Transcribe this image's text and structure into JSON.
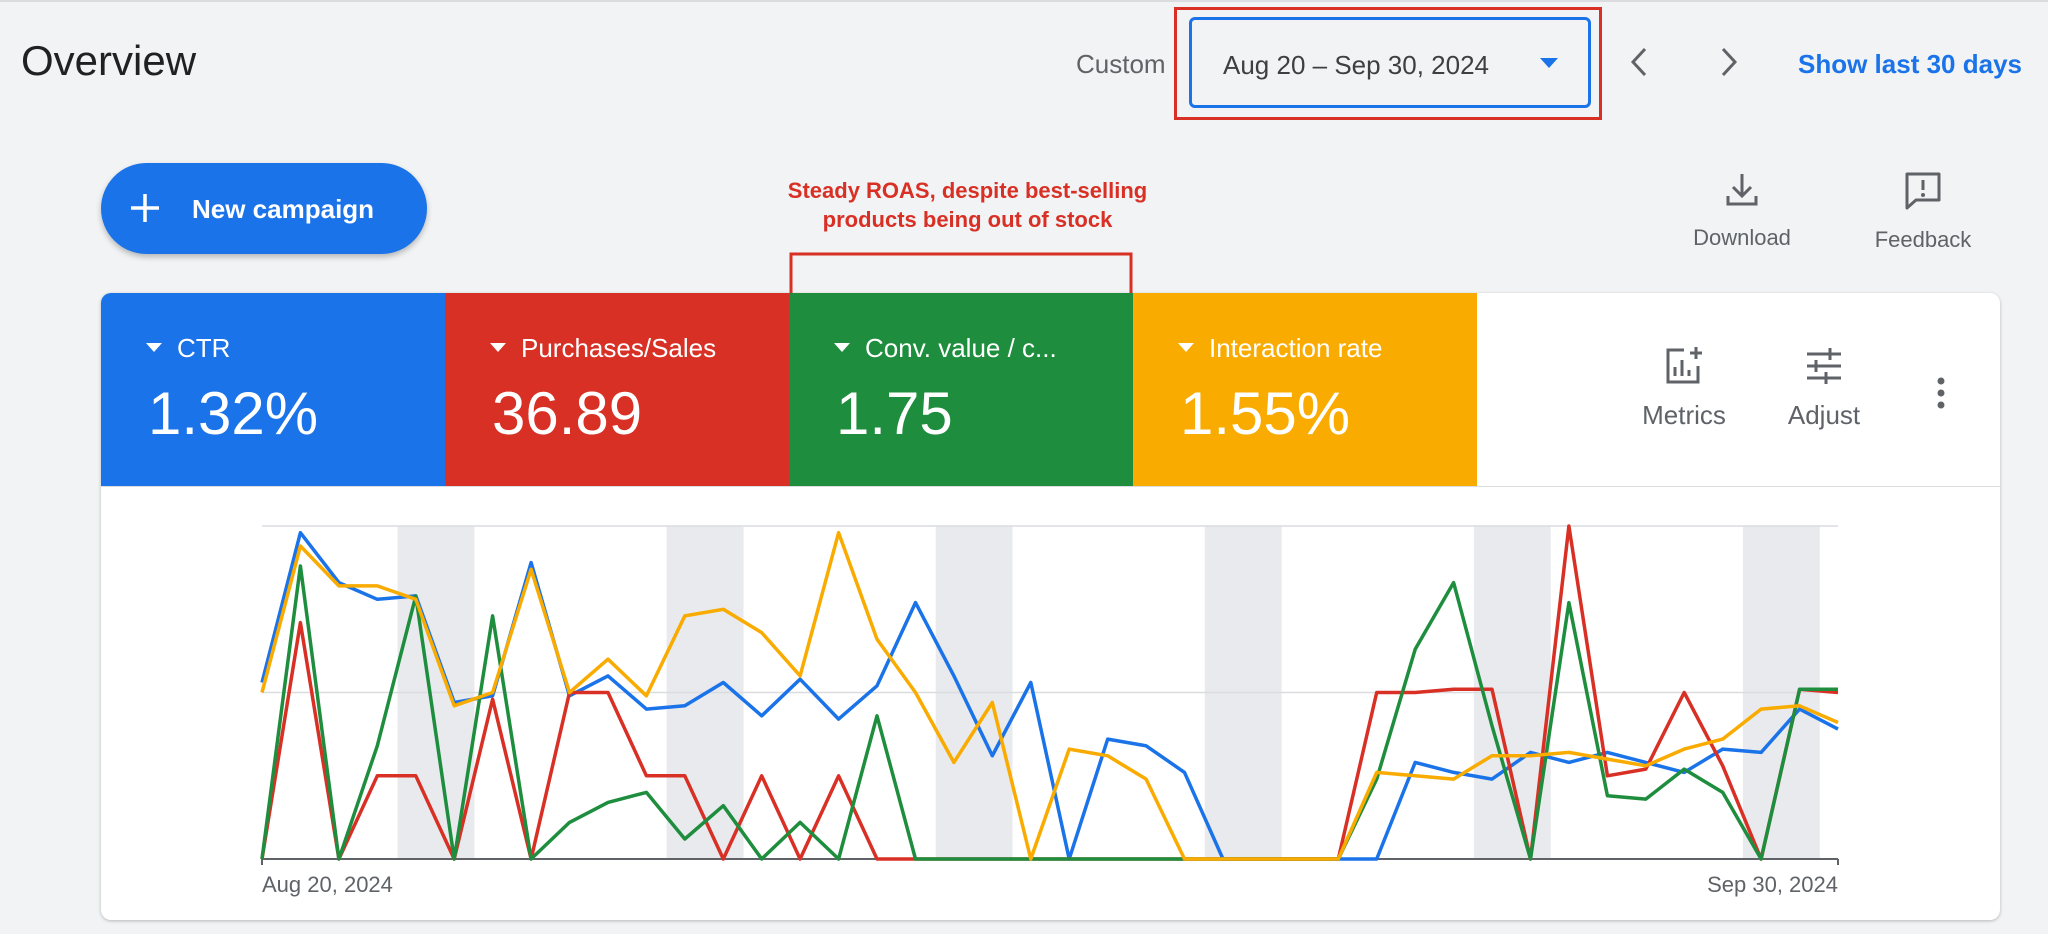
{
  "header": {
    "title": "Overview",
    "date_mode_label": "Custom",
    "date_range": "Aug 20 – Sep 30, 2024",
    "show_last_label": "Show last 30 days"
  },
  "actions": {
    "new_campaign_label": "New campaign",
    "download_label": "Download",
    "feedback_label": "Feedback"
  },
  "annotation": {
    "line1": "Steady ROAS, despite best-selling",
    "line2": "products being out of stock",
    "color": "#d93025"
  },
  "scorecards": [
    {
      "label": "CTR",
      "value": "1.32%",
      "color": "#1a73e8"
    },
    {
      "label": "Purchases/Sales",
      "value": "36.89",
      "color": "#d93025"
    },
    {
      "label": "Conv. value / c...",
      "value": "1.75",
      "color": "#1e8e3e"
    },
    {
      "label": "Interaction rate",
      "value": "1.55%",
      "color": "#f9ab00"
    }
  ],
  "panel_tools": {
    "metrics_label": "Metrics",
    "adjust_label": "Adjust"
  },
  "chart_data": {
    "type": "line",
    "x_start_label": "Aug 20, 2024",
    "x_end_label": "Sep 30, 2024",
    "x": [
      "Aug 20",
      "Aug 21",
      "Aug 22",
      "Aug 23",
      "Aug 24",
      "Aug 25",
      "Aug 26",
      "Aug 27",
      "Aug 28",
      "Aug 29",
      "Aug 30",
      "Aug 31",
      "Sep 1",
      "Sep 2",
      "Sep 3",
      "Sep 4",
      "Sep 5",
      "Sep 6",
      "Sep 7",
      "Sep 8",
      "Sep 9",
      "Sep 10",
      "Sep 11",
      "Sep 12",
      "Sep 13",
      "Sep 14",
      "Sep 15",
      "Sep 16",
      "Sep 17",
      "Sep 18",
      "Sep 19",
      "Sep 20",
      "Sep 21",
      "Sep 22",
      "Sep 23",
      "Sep 24",
      "Sep 25",
      "Sep 26",
      "Sep 27",
      "Sep 28",
      "Sep 29",
      "Sep 30"
    ],
    "weekend_bands": [
      [
        "Aug 24",
        "Aug 25"
      ],
      [
        "Aug 31",
        "Sep 1"
      ],
      [
        "Sep 7",
        "Sep 8"
      ],
      [
        "Sep 14",
        "Sep 15"
      ],
      [
        "Sep 21",
        "Sep 22"
      ],
      [
        "Sep 28",
        "Sep 29"
      ]
    ],
    "y_scale": "normalized, 0 to 1, no axis labels shown",
    "ylim": [
      0,
      1
    ],
    "grid": "horizontal lines at 0.5 and 1.0",
    "series": [
      {
        "metric": "CTR",
        "color": "#1a73e8",
        "values": [
          0.53,
          0.98,
          0.83,
          0.78,
          0.79,
          0.47,
          0.49,
          0.89,
          0.49,
          0.55,
          0.45,
          0.46,
          0.53,
          0.43,
          0.54,
          0.42,
          0.52,
          0.77,
          0.55,
          0.31,
          0.53,
          0.0,
          0.36,
          0.34,
          0.26,
          0.0,
          0.0,
          0.0,
          0.0,
          0.0,
          0.29,
          0.26,
          0.24,
          0.32,
          0.29,
          0.32,
          0.29,
          0.26,
          0.33,
          0.32,
          0.45,
          0.39
        ]
      },
      {
        "metric": "Purchases/Sales",
        "color": "#d93025",
        "values": [
          0.0,
          0.71,
          0.0,
          0.25,
          0.25,
          0.0,
          0.48,
          0.0,
          0.5,
          0.5,
          0.25,
          0.25,
          0.0,
          0.25,
          0.0,
          0.25,
          0.0,
          0.0,
          0.0,
          0.0,
          0.0,
          0.0,
          0.0,
          0.0,
          0.0,
          0.0,
          0.0,
          0.0,
          0.0,
          0.5,
          0.5,
          0.51,
          0.51,
          0.0,
          1.0,
          0.25,
          0.27,
          0.5,
          0.28,
          0.0,
          0.51,
          0.5
        ]
      },
      {
        "metric": "Conv. value / cost",
        "color": "#1e8e3e",
        "values": [
          0.0,
          0.88,
          0.0,
          0.34,
          0.79,
          0.0,
          0.73,
          0.0,
          0.11,
          0.17,
          0.2,
          0.06,
          0.16,
          0.0,
          0.11,
          0.0,
          0.43,
          0.0,
          0.0,
          0.0,
          0.0,
          0.0,
          0.0,
          0.0,
          0.0,
          0.0,
          0.0,
          0.0,
          0.0,
          0.24,
          0.63,
          0.83,
          0.4,
          0.0,
          0.77,
          0.19,
          0.18,
          0.27,
          0.2,
          0.0,
          0.51,
          0.51
        ]
      },
      {
        "metric": "Interaction rate",
        "color": "#f9ab00",
        "values": [
          0.5,
          0.94,
          0.82,
          0.82,
          0.78,
          0.46,
          0.5,
          0.87,
          0.5,
          0.6,
          0.49,
          0.73,
          0.75,
          0.68,
          0.55,
          0.98,
          0.66,
          0.5,
          0.29,
          0.47,
          0.0,
          0.33,
          0.31,
          0.24,
          0.0,
          0.0,
          0.0,
          0.0,
          0.0,
          0.26,
          0.25,
          0.24,
          0.31,
          0.31,
          0.32,
          0.3,
          0.28,
          0.33,
          0.36,
          0.45,
          0.46,
          0.41
        ]
      }
    ]
  }
}
